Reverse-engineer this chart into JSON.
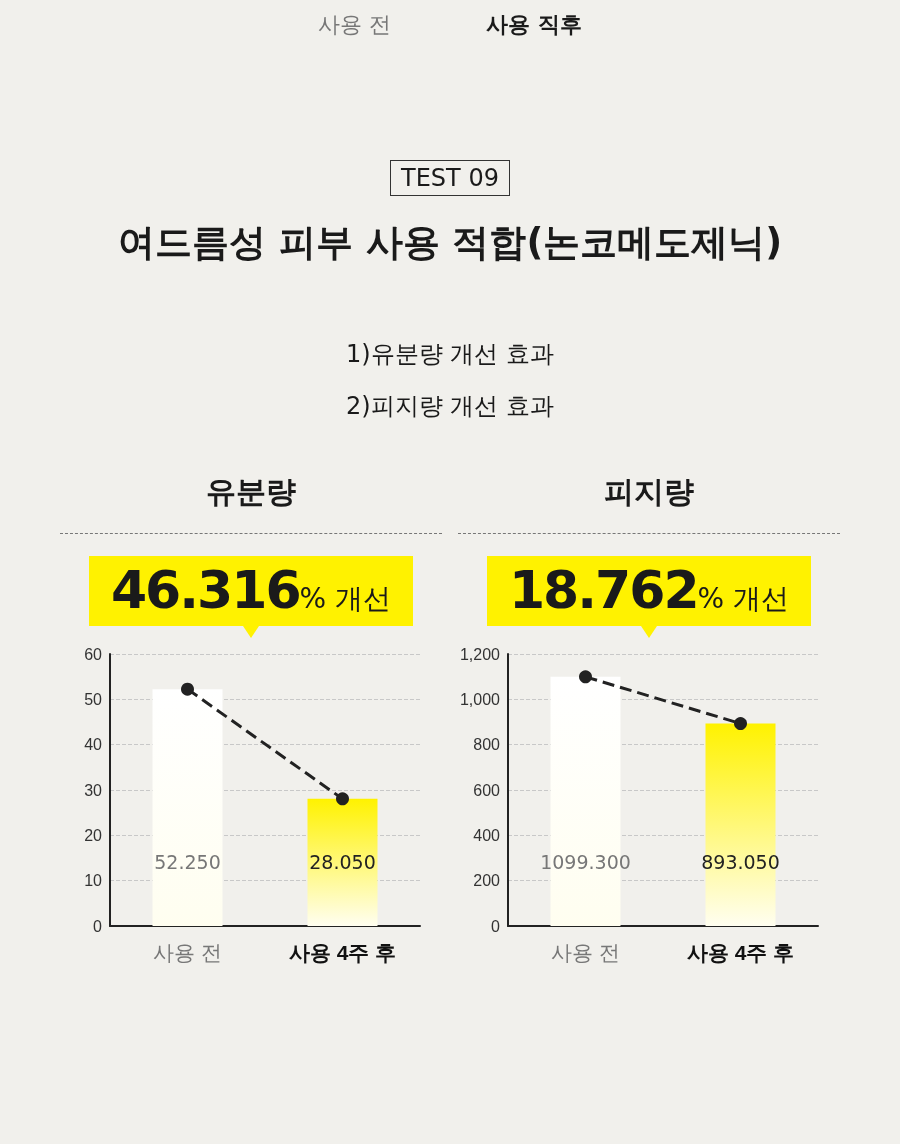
{
  "chart_data": [
    {
      "type": "other",
      "title": "여드름성 피부 사용 적합(논코메도제닉)",
      "annotations": [
        "사용 전",
        "사용 직후",
        "TEST 09",
        "1)유분량 개선 효과",
        "2)피지량 개선 효과"
      ]
    },
    {
      "type": "bar",
      "title": "유분량",
      "subtitle": "46.316% 개선",
      "categories": [
        "사용 전",
        "사용 4주 후"
      ],
      "series": [
        {
          "type": "bar",
          "colors": [
            "#ffffff",
            "#fff200"
          ],
          "values": [
            52.25,
            28.05
          ],
          "value_labels": [
            "52.250",
            "28.050"
          ]
        },
        {
          "type": "line",
          "color": "#222222",
          "values": [
            52.25,
            28.05
          ]
        }
      ],
      "ylim": [
        0,
        60
      ],
      "yticks": [
        0,
        10,
        20,
        30,
        40,
        50,
        60
      ],
      "grid": "y",
      "marker": "circle",
      "line_style": "dashed"
    },
    {
      "type": "bar",
      "title": "피지량",
      "subtitle": "18.762% 개선",
      "categories": [
        "사용 전",
        "사용 4주 후"
      ],
      "series": [
        {
          "type": "bar",
          "colors": [
            "#ffffff",
            "#fff200"
          ],
          "values": [
            1099.3,
            893.05
          ],
          "value_labels": [
            "1099.300",
            "893.050"
          ]
        },
        {
          "type": "line",
          "color": "#222222",
          "values": [
            1099.3,
            893.05
          ]
        }
      ],
      "ylim": [
        0,
        1200
      ],
      "yticks": [
        0,
        200,
        400,
        600,
        800,
        {
          "value": 1000,
          "label": "1,000"
        },
        {
          "value": 1200,
          "label": "1,200"
        }
      ],
      "grid": "y",
      "marker": "circle",
      "line_style": "dashed"
    }
  ]
}
